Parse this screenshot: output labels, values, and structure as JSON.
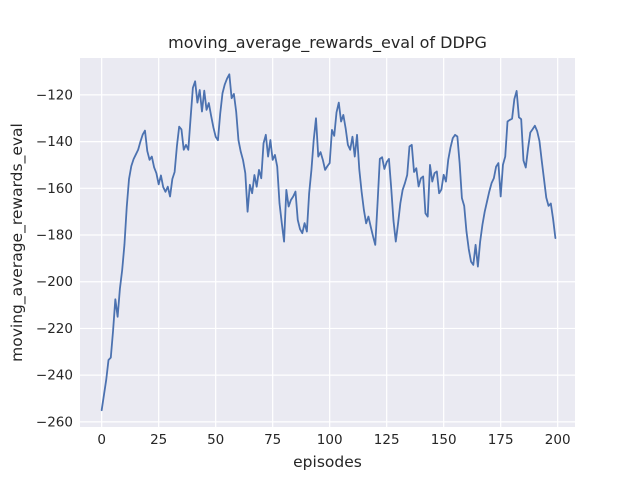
{
  "figure": {
    "title": "moving_average_rewards_eval of DDPG",
    "xlabel": "episodes",
    "ylabel": "moving_average_rewards_eval"
  },
  "chart_data": {
    "type": "line",
    "title": "moving_average_rewards_eval of DDPG",
    "xlabel": "episodes",
    "ylabel": "moving_average_rewards_eval",
    "legend": null,
    "grid": true,
    "style": "seaborn-darkgrid",
    "axes_background": "#eaeaf2",
    "grid_color": "#ffffff",
    "text_color": "#262626",
    "line_color": "#4c72b0",
    "line_width": 1.8,
    "x_ticks": [
      0,
      25,
      50,
      75,
      100,
      125,
      150,
      175,
      200
    ],
    "y_ticks": [
      -120,
      -140,
      -160,
      -180,
      -200,
      -220,
      -240,
      -260
    ],
    "xlim": [
      -9.5,
      207.6
    ],
    "ylim": [
      -262.2,
      -104.2
    ],
    "series": [
      {
        "name": "moving_average_rewards_eval",
        "x_start": 0,
        "x_step": 1,
        "values": [
          -255,
          -248.5,
          -242,
          -233.5,
          -232.5,
          -221,
          -207.5,
          -215,
          -203,
          -195,
          -184,
          -168,
          -156,
          -150.5,
          -147.5,
          -145.5,
          -143.5,
          -140,
          -137,
          -135.3,
          -144,
          -147.8,
          -146.4,
          -151,
          -153.5,
          -158.3,
          -154.5,
          -159.5,
          -161.5,
          -159.3,
          -163.5,
          -156,
          -153,
          -142,
          -133.6,
          -134.8,
          -143.5,
          -141.4,
          -143.5,
          -130,
          -117,
          -114.2,
          -123.3,
          -117.9,
          -127.1,
          -118.2,
          -126.4,
          -123.5,
          -128.9,
          -133.9,
          -137.9,
          -139.4,
          -128,
          -119.3,
          -115.5,
          -113,
          -111.2,
          -121.4,
          -119.6,
          -127.2,
          -139.4,
          -144.3,
          -147.9,
          -153.5,
          -170,
          -158.5,
          -162.1,
          -154.3,
          -159.3,
          -152.1,
          -155.7,
          -140.7,
          -137.1,
          -146.4,
          -139.3,
          -147.8,
          -145.7,
          -150.7,
          -166.4,
          -174.9,
          -182.8,
          -160.7,
          -167.8,
          -165,
          -163.5,
          -161.4,
          -173.5,
          -177.5,
          -179.2,
          -174.9,
          -178.5,
          -162.1,
          -152.1,
          -139.3,
          -130,
          -146.4,
          -144.5,
          -147.8,
          -152.1,
          -150.5,
          -149.2,
          -135,
          -137.5,
          -127.5,
          -123.3,
          -131.4,
          -128.6,
          -134.3,
          -141.4,
          -143.5,
          -137.9,
          -146.4,
          -137.1,
          -152,
          -161.4,
          -169.2,
          -175,
          -172.1,
          -176.4,
          -180.5,
          -184.2,
          -166.4,
          -147.4,
          -146.7,
          -151.7,
          -148.8,
          -147.4,
          -160,
          -174,
          -182.8,
          -175,
          -166.4,
          -160.7,
          -157.8,
          -154.3,
          -142.1,
          -141.4,
          -153,
          -151.4,
          -159.2,
          -155.7,
          -154.9,
          -170.7,
          -172.1,
          -150,
          -157.1,
          -153.5,
          -152.8,
          -162.1,
          -160.5,
          -154.2,
          -157.1,
          -147.8,
          -142.5,
          -138.5,
          -137.1,
          -137.8,
          -149.2,
          -164.2,
          -167.5,
          -178.5,
          -186,
          -191.4,
          -192.8,
          -184.2,
          -193.5,
          -182.8,
          -175.6,
          -170,
          -165.7,
          -161.4,
          -157.8,
          -155.7,
          -150.7,
          -149.2,
          -163.5,
          -149.9,
          -146.4,
          -131.4,
          -130.7,
          -130.2,
          -121.8,
          -118.3,
          -129.6,
          -130.4,
          -148.1,
          -151.1,
          -143,
          -136.1,
          -134.7,
          -133.2,
          -135.5,
          -139.7,
          -148.1,
          -156,
          -164,
          -167.5,
          -166.5,
          -173.2,
          -181.3
        ]
      }
    ]
  }
}
